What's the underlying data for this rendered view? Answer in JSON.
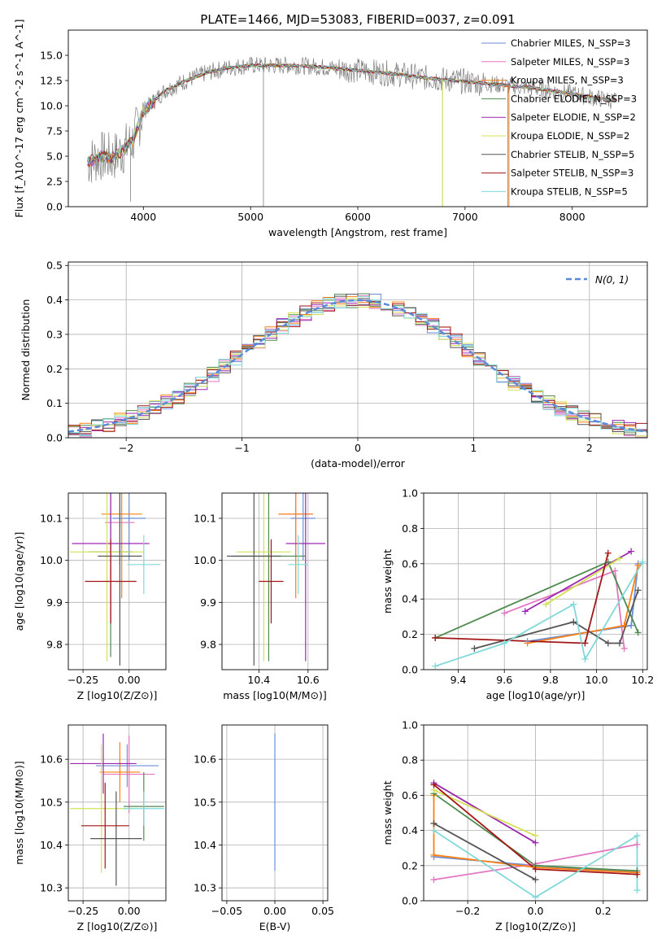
{
  "chart_data": [
    {
      "id": "spectrum",
      "type": "line",
      "title": "PLATE=1466, MJD=53083, FIBERID=0037, z=0.091",
      "xlabel": "wavelength [Angstrom, rest frame]",
      "ylabel": "Flux [f_λ10^-17 erg cm^-2 s^-1 A^-1]",
      "xlim": [
        3300,
        8700
      ],
      "ylim": [
        0,
        17.5
      ],
      "xticks": [
        4000,
        5000,
        6000,
        7000,
        8000
      ],
      "yticks": [
        0.0,
        2.5,
        5.0,
        7.5,
        10.0,
        12.5,
        15.0
      ],
      "grid": false,
      "legend_position": "right",
      "data_x": [
        3500,
        3600,
        3700,
        3800,
        3900,
        4000,
        4200,
        4400,
        4600,
        4800,
        5000,
        5200,
        5400,
        5600,
        5800,
        6000,
        6200,
        6400,
        6600,
        6800,
        7000,
        7200,
        7400,
        7600,
        7800,
        8000,
        8200,
        8400
      ],
      "data_y": [
        4.5,
        5.0,
        4.8,
        5.5,
        6.5,
        9.5,
        11.5,
        12.5,
        13.3,
        13.8,
        14.0,
        14.0,
        14.0,
        13.9,
        13.7,
        13.5,
        13.3,
        13.1,
        12.8,
        12.6,
        12.4,
        12.2,
        12.0,
        11.8,
        11.5,
        11.2,
        10.8,
        10.5
      ],
      "series": [
        {
          "name": "Chabrier MILES, N_SSP=3",
          "color": "#6b8ed6"
        },
        {
          "name": "Salpeter MILES, N_SSP=3",
          "color": "#e377c2"
        },
        {
          "name": "Kroupa MILES, N_SSP=3",
          "color": "#ff7f0e"
        },
        {
          "name": "Chabrier ELODIE, N_SSP=3",
          "color": "#4f8a4f"
        },
        {
          "name": "Salpeter ELODIE, N_SSP=2",
          "color": "#9c27b0"
        },
        {
          "name": "Kroupa ELODIE, N_SSP=2",
          "color": "#d4e157"
        },
        {
          "name": "Chabrier STELIB, N_SSP=5",
          "color": "#555555"
        },
        {
          "name": "Salpeter STELIB, N_SSP=3",
          "color": "#a31515"
        },
        {
          "name": "Kroupa STELIB, N_SSP=5",
          "color": "#80d8d8"
        }
      ]
    },
    {
      "id": "residuals",
      "type": "line",
      "xlabel": "(data-model)/error",
      "ylabel": "Normed distribution",
      "xlim": [
        -2.5,
        2.5
      ],
      "ylim": [
        0,
        0.51
      ],
      "xticks": [
        -2,
        -1,
        0,
        1,
        2
      ],
      "yticks": [
        0.0,
        0.1,
        0.2,
        0.3,
        0.4,
        0.5
      ],
      "grid": true,
      "legend": "N(0, 1)",
      "legend_position": "top-right"
    },
    {
      "id": "z_age",
      "type": "scatter",
      "xlabel": "Z [log10(Z/Z⊙)]",
      "ylabel": "age  [log10(age/yr)]",
      "xlim": [
        -0.33,
        0.2
      ],
      "ylim": [
        9.74,
        10.16
      ],
      "xticks": [
        -0.25,
        0.0
      ],
      "yticks": [
        9.8,
        9.9,
        10.0,
        10.1
      ],
      "grid": true,
      "points": [
        {
          "x": 0.0,
          "y": 10.1,
          "xerr": 0.09,
          "yerr": 0.1
        },
        {
          "x": -0.05,
          "y": 10.09,
          "xerr": 0.08,
          "yerr": 0.1
        },
        {
          "x": -0.04,
          "y": 10.11,
          "xerr": 0.11,
          "yerr": 0.2
        },
        {
          "x": -0.1,
          "y": 10.02,
          "xerr": 0.12,
          "yerr": 0.25
        },
        {
          "x": -0.1,
          "y": 10.04,
          "xerr": 0.21,
          "yerr": 0.19
        },
        {
          "x": -0.12,
          "y": 10.02,
          "xerr": 0.2,
          "yerr": 0.26
        },
        {
          "x": -0.05,
          "y": 10.01,
          "xerr": 0.12,
          "yerr": 0.26
        },
        {
          "x": -0.1,
          "y": 9.95,
          "xerr": 0.14,
          "yerr": 0.1
        },
        {
          "x": 0.08,
          "y": 9.99,
          "xerr": 0.09,
          "yerr": 0.07
        }
      ]
    },
    {
      "id": "mass_age",
      "type": "scatter",
      "xlabel": "mass [log10(M/M⊙)]",
      "xlim": [
        10.25,
        10.68
      ],
      "ylim": [
        9.74,
        10.16
      ],
      "xticks": [
        10.4,
        10.6
      ],
      "yticks": [
        9.8,
        9.9,
        10.0,
        10.1
      ],
      "grid": true,
      "points": [
        {
          "x": 10.58,
          "y": 10.1,
          "xerr": 0.05,
          "yerr": 0.1
        },
        {
          "x": 10.55,
          "y": 10.11,
          "xerr": 0.07,
          "yerr": 0.1
        },
        {
          "x": 10.55,
          "y": 10.11,
          "xerr": 0.07,
          "yerr": 0.2
        },
        {
          "x": 10.44,
          "y": 10.01,
          "xerr": 0.15,
          "yerr": 0.25
        },
        {
          "x": 10.59,
          "y": 10.04,
          "xerr": 0.08,
          "yerr": 0.28
        },
        {
          "x": 10.42,
          "y": 10.02,
          "xerr": 0.11,
          "yerr": 0.26
        },
        {
          "x": 10.38,
          "y": 10.01,
          "xerr": 0.11,
          "yerr": 0.26
        },
        {
          "x": 10.45,
          "y": 9.95,
          "xerr": 0.05,
          "yerr": 0.1
        },
        {
          "x": 10.56,
          "y": 9.99,
          "xerr": 0.04,
          "yerr": 0.07
        }
      ]
    },
    {
      "id": "age_weight",
      "type": "line",
      "xlabel": "age  [log10(age/yr)]",
      "ylabel": "mass weight",
      "xlim": [
        9.25,
        10.22
      ],
      "ylim": [
        0,
        1.0
      ],
      "xticks": [
        9.4,
        9.6,
        9.8,
        10.0,
        10.2
      ],
      "yticks": [
        0.0,
        0.2,
        0.4,
        0.6,
        0.8,
        1.0
      ],
      "grid": true,
      "series": [
        {
          "color": "#6b8ed6",
          "points": [
            [
              9.7,
              0.16
            ],
            [
              10.15,
              0.25
            ],
            [
              10.18,
              0.6
            ]
          ]
        },
        {
          "color": "#e377c2",
          "points": [
            [
              9.6,
              0.32
            ],
            [
              10.08,
              0.56
            ],
            [
              10.12,
              0.12
            ]
          ]
        },
        {
          "color": "#ff7f0e",
          "points": [
            [
              9.7,
              0.15
            ],
            [
              10.12,
              0.25
            ],
            [
              10.18,
              0.59
            ]
          ]
        },
        {
          "color": "#4f8a4f",
          "points": [
            [
              9.3,
              0.18
            ],
            [
              10.05,
              0.61
            ],
            [
              10.18,
              0.21
            ]
          ]
        },
        {
          "color": "#9c27b0",
          "points": [
            [
              9.69,
              0.33
            ],
            [
              10.15,
              0.67
            ]
          ]
        },
        {
          "color": "#d4e157",
          "points": [
            [
              9.78,
              0.37
            ],
            [
              10.1,
              0.63
            ]
          ]
        },
        {
          "color": "#555555",
          "points": [
            [
              9.47,
              0.12
            ],
            [
              9.9,
              0.27
            ],
            [
              10.05,
              0.15
            ],
            [
              10.1,
              0.15
            ],
            [
              10.18,
              0.45
            ]
          ]
        },
        {
          "color": "#a31515",
          "points": [
            [
              9.3,
              0.18
            ],
            [
              9.95,
              0.15
            ],
            [
              10.05,
              0.66
            ]
          ]
        },
        {
          "color": "#80d8d8",
          "points": [
            [
              9.3,
              0.02
            ],
            [
              9.6,
              0.15
            ],
            [
              9.9,
              0.37
            ],
            [
              9.95,
              0.06
            ],
            [
              10.2,
              0.61
            ]
          ]
        }
      ]
    },
    {
      "id": "z_mass",
      "type": "scatter",
      "xlabel": "Z [log10(Z/Z⊙)]",
      "ylabel": "mass [log10(M/M⊙)]",
      "xlim": [
        -0.33,
        0.2
      ],
      "ylim": [
        10.27,
        10.68
      ],
      "xticks": [
        -0.25,
        0.0
      ],
      "yticks": [
        10.3,
        10.4,
        10.5,
        10.6
      ],
      "grid": true,
      "points": [
        {
          "x": -0.01,
          "y": 10.585,
          "xerr": 0.17,
          "yerr": 0.05
        },
        {
          "x": -0.0,
          "y": 10.565,
          "xerr": 0.14,
          "yerr": 0.09
        },
        {
          "x": -0.05,
          "y": 10.57,
          "xerr": 0.11,
          "yerr": 0.07
        },
        {
          "x": 0.08,
          "y": 10.49,
          "xerr": 0.11,
          "yerr": 0.08
        },
        {
          "x": -0.14,
          "y": 10.59,
          "xerr": 0.18,
          "yerr": 0.07
        },
        {
          "x": -0.15,
          "y": 10.485,
          "xerr": 0.17,
          "yerr": 0.15
        },
        {
          "x": -0.07,
          "y": 10.415,
          "xerr": 0.14,
          "yerr": 0.11
        },
        {
          "x": -0.13,
          "y": 10.445,
          "xerr": 0.13,
          "yerr": 0.1
        },
        {
          "x": 0.08,
          "y": 10.485,
          "xerr": 0.11,
          "yerr": 0.04
        }
      ]
    },
    {
      "id": "ebv_mass",
      "type": "scatter",
      "xlabel": "E(B-V)",
      "xlim": [
        -0.055,
        0.055
      ],
      "ylim": [
        10.27,
        10.68
      ],
      "xticks": [
        -0.05,
        0.0,
        0.05
      ],
      "yticks": [
        10.3,
        10.4,
        10.5,
        10.6
      ],
      "grid": true,
      "points": [
        {
          "x": 0.0,
          "y": 10.5,
          "yerr": 0.16
        }
      ]
    },
    {
      "id": "z_weight",
      "type": "line",
      "xlabel": "Z [log10(Z/Z⊙)]",
      "ylabel": "mass weight",
      "xlim": [
        -0.33,
        0.33
      ],
      "ylim": [
        0,
        1.0
      ],
      "xticks": [
        -0.2,
        0.0,
        0.2
      ],
      "yticks": [
        0.0,
        0.2,
        0.4,
        0.6,
        0.8,
        1.0
      ],
      "grid": true,
      "series": [
        {
          "color": "#6b8ed6",
          "points": [
            [
              -0.3,
              0.25
            ],
            [
              0.0,
              0.2
            ],
            [
              0.3,
              0.16
            ]
          ]
        },
        {
          "color": "#e377c2",
          "points": [
            [
              -0.3,
              0.12
            ],
            [
              0.0,
              0.21
            ],
            [
              0.3,
              0.32
            ]
          ]
        },
        {
          "color": "#ff7f0e",
          "points": [
            [
              -0.3,
              0.6
            ],
            [
              -0.3,
              0.26
            ],
            [
              0.0,
              0.19
            ],
            [
              0.3,
              0.16
            ]
          ]
        },
        {
          "color": "#4f8a4f",
          "points": [
            [
              -0.3,
              0.61
            ],
            [
              0.0,
              0.2
            ],
            [
              0.3,
              0.17
            ]
          ]
        },
        {
          "color": "#9c27b0",
          "points": [
            [
              -0.3,
              0.67
            ],
            [
              0.0,
              0.33
            ]
          ]
        },
        {
          "color": "#d4e157",
          "points": [
            [
              -0.3,
              0.63
            ],
            [
              0.0,
              0.37
            ]
          ]
        },
        {
          "color": "#555555",
          "points": [
            [
              -0.3,
              0.44
            ],
            [
              0.0,
              0.12
            ]
          ]
        },
        {
          "color": "#a31515",
          "points": [
            [
              -0.3,
              0.66
            ],
            [
              0.0,
              0.18
            ],
            [
              0.3,
              0.15
            ]
          ]
        },
        {
          "color": "#80d8d8",
          "points": [
            [
              -0.3,
              0.4
            ],
            [
              0.0,
              0.02
            ],
            [
              0.3,
              0.37
            ],
            [
              0.3,
              0.06
            ]
          ]
        }
      ]
    }
  ]
}
